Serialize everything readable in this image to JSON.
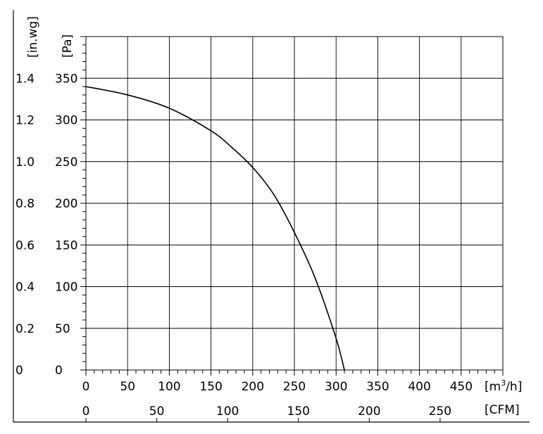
{
  "chart_data": {
    "type": "line",
    "title": "",
    "grid": true,
    "x_axis": {
      "unit_label": "[m³/h]",
      "unit_base": "[m",
      "unit_sup": "3",
      "unit_tail": "/h]",
      "range": [
        0,
        500
      ],
      "ticks": [
        0,
        50,
        100,
        150,
        200,
        250,
        300,
        350,
        400,
        450
      ]
    },
    "x2_axis": {
      "unit_label": "[CFM]",
      "ticks": [
        0,
        50,
        100,
        150,
        200,
        250
      ]
    },
    "y_axis": {
      "unit_label": "[Pa]",
      "range": [
        0,
        400
      ],
      "ticks": [
        0,
        50,
        100,
        150,
        200,
        250,
        300,
        350
      ]
    },
    "y2_axis": {
      "unit_label": "[in.wg]",
      "ticks": [
        "0",
        "0.2",
        "0.4",
        "0.6",
        "0.8",
        "1.0",
        "1.2",
        "1.4"
      ]
    },
    "series": [
      {
        "x": [
          0,
          50,
          100,
          150,
          175,
          200,
          225,
          250,
          275,
          300,
          310
        ],
        "y": [
          340,
          330,
          314,
          287,
          267,
          243,
          211,
          165,
          110,
          38,
          0
        ],
        "color": "#000000"
      }
    ]
  }
}
